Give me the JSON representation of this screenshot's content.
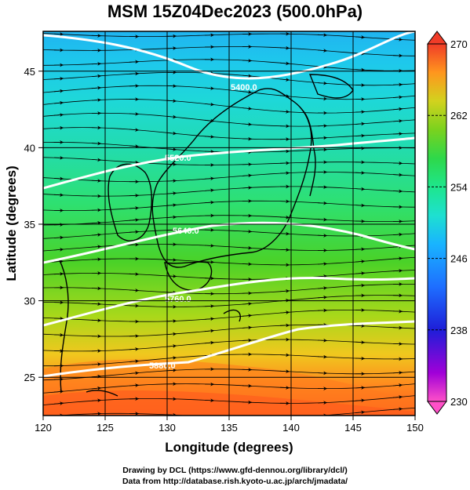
{
  "title": "MSM 15Z04Dec2023 (500.0hPa)",
  "map": {
    "lon_range": [
      120,
      150
    ],
    "lat_range": [
      22.5,
      47.6
    ],
    "x_ticks": [
      "120",
      "125",
      "130",
      "135",
      "140",
      "145",
      "150"
    ],
    "y_ticks": [
      "25",
      "30",
      "35",
      "40",
      "45"
    ],
    "xlabel": "Longitude (degrees)",
    "ylabel": "Latitude  (degrees)",
    "field": "temperature (K), filled, with streamlines and geopotential height contours",
    "contours": [
      {
        "label": "5400.0"
      },
      {
        "label": "5520.0"
      },
      {
        "label": "5640.0"
      },
      {
        "label": "5760.0"
      },
      {
        "label": "5880.0"
      }
    ]
  },
  "colorbar": {
    "min": 230,
    "max": 270,
    "labels": [
      "270",
      "262",
      "254",
      "246",
      "238",
      "230"
    ],
    "colors": [
      "#ff55c8",
      "#9c00d8",
      "#2a18d8",
      "#1a5aff",
      "#19a8ff",
      "#1ed8e0",
      "#1ee6a0",
      "#28d85a",
      "#5ad21e",
      "#a0d818",
      "#e0d21e",
      "#ffa01e",
      "#ff6a1e",
      "#f03c28"
    ]
  },
  "credits": {
    "line1": "Drawing by DCL (https://www.gfd-dennou.org/library/dcl/)",
    "line2": "Data from http://database.rish.kyoto-u.ac.jp/arch/jmadata/"
  }
}
